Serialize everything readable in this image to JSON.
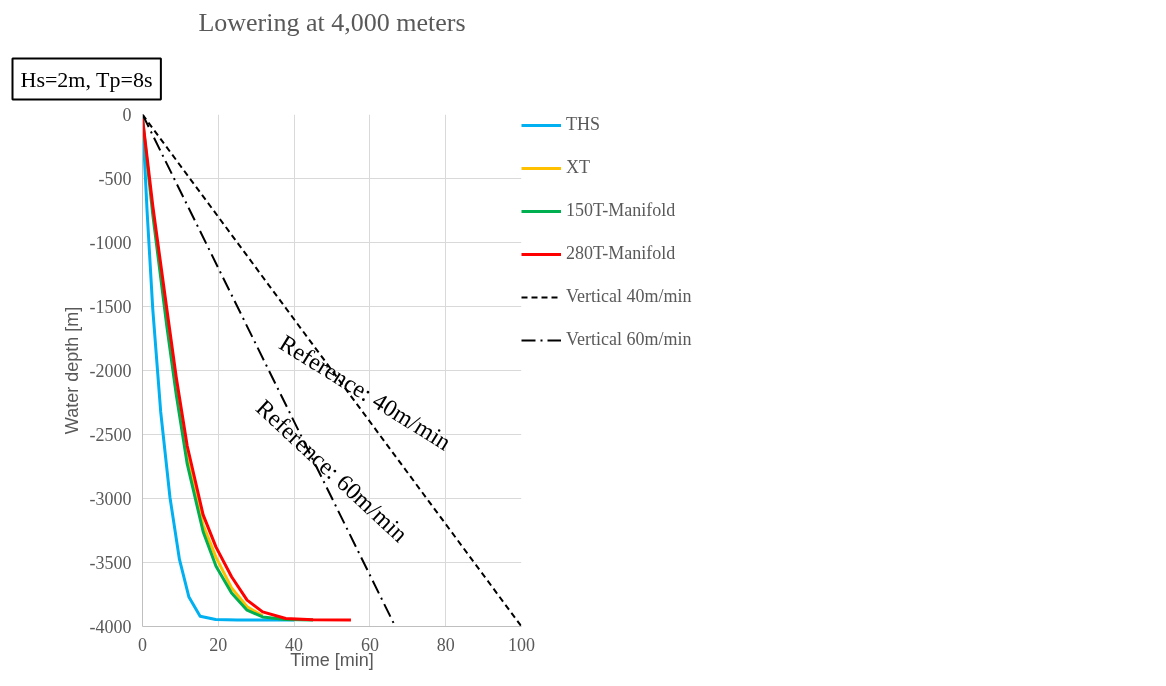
{
  "chart_data": {
    "type": "line",
    "title": "Lowering at 4,000 meters",
    "xlabel": "Time [min]",
    "ylabel": "Water depth [m]",
    "xlim": [
      0,
      100
    ],
    "xticks": [
      0,
      20,
      40,
      60,
      80,
      100
    ],
    "ylim": [
      -4000,
      0
    ],
    "yticks": [
      -4000,
      -3500,
      -3000,
      -2500,
      -2000,
      -1500,
      -1000,
      -500,
      0
    ],
    "grid": true,
    "legend": "right",
    "line_style": "solid",
    "series": [
      {
        "name": "THS",
        "color": "#00b0f0",
        "x": [
          0,
          1.2,
          2.7,
          4.8,
          7.25,
          9.75,
          12.25,
          15.2,
          19.3,
          25,
          40
        ],
        "values": [
          -30,
          -750,
          -1516,
          -2322,
          -2992,
          -3476,
          -3770,
          -3920,
          -3945,
          -3950,
          -3950
        ]
      },
      {
        "name": "XT",
        "color": "#ffc000",
        "x": [
          8.9,
          11.8,
          16,
          19.4,
          23.5,
          27.6,
          31.7
        ],
        "values": [
          -2140,
          -2680,
          -3210,
          -3460,
          -3698,
          -3846,
          -3917
        ]
      },
      {
        "name": "150T-Manifold",
        "color": "#00b050",
        "x": [
          0,
          2.7,
          6.4,
          8.9,
          11.8,
          16,
          19.4,
          23.5,
          27.6,
          31.7,
          37.8,
          45
        ],
        "values": [
          -30,
          -780,
          -1650,
          -2187,
          -2730,
          -3260,
          -3529,
          -3738,
          -3873,
          -3925,
          -3945,
          -3950
        ]
      },
      {
        "name": "280T-Manifold",
        "color": "#ff0000",
        "x": [
          0,
          2.7,
          6.4,
          8.9,
          11.8,
          16,
          19.4,
          23.5,
          27.6,
          31.7,
          37.8,
          45,
          55
        ],
        "values": [
          -30,
          -710,
          -1516,
          -2053,
          -2590,
          -3128,
          -3380,
          -3611,
          -3794,
          -3886,
          -3937,
          -3948,
          -3950
        ]
      },
      {
        "name": "Vertical 40m/min",
        "color": "#000000",
        "line_style": "dashed",
        "x": [
          0,
          100
        ],
        "values": [
          0,
          -4000
        ]
      },
      {
        "name": "Vertical 60m/min",
        "color": "#000000",
        "line_style": "dashdot",
        "x": [
          0,
          66.7
        ],
        "values": [
          0,
          -4000
        ]
      }
    ],
    "annotations": [
      "Hs=2m, Tp=8s",
      "Reference: 40m/min",
      "Reference: 60m/min"
    ]
  }
}
